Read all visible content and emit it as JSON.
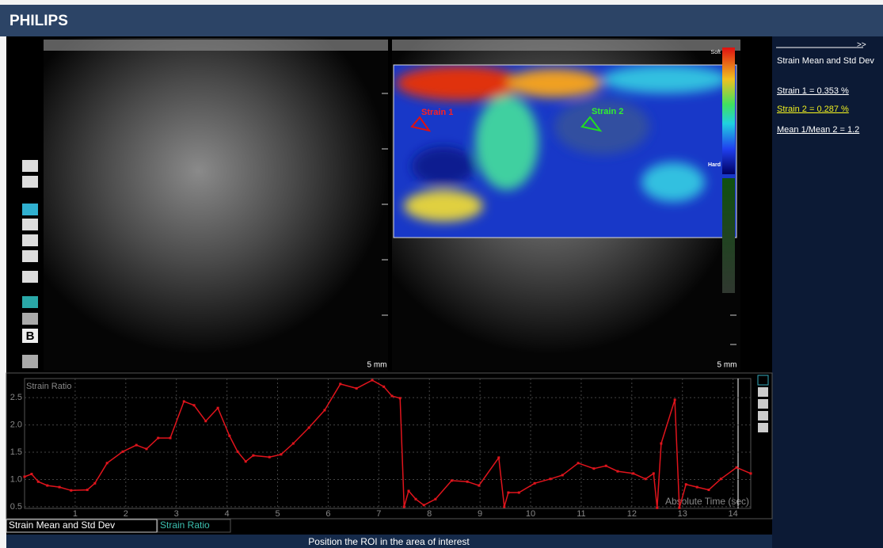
{
  "header": {
    "title": "PHILIPS"
  },
  "image": {
    "roi_1": "Strain 1",
    "roi_2": "Strain 2",
    "scale_top": "Soft",
    "scale_bottom": "Hard",
    "depth_left": "5 mm",
    "depth_right": "5 mm",
    "mode_button": "B"
  },
  "side_panel": {
    "arrow": ">>",
    "title": "Strain Mean and Std Dev",
    "strain_1": "Strain 1 = 0.353 %",
    "strain_2": "Strain 2 = 0.287 %",
    "ratio": "Mean 1/Mean 2 = 1.2"
  },
  "chart_data": {
    "type": "line",
    "y_label": "Strain Ratio",
    "x_label": "Absolute Time (sec)",
    "color": "#e0141c",
    "grid": true,
    "x": [
      0,
      0.14,
      0.27,
      0.45,
      0.69,
      0.92,
      1.24,
      1.39,
      1.63,
      1.94,
      2.21,
      2.41,
      2.64,
      2.88,
      3.15,
      3.35,
      3.58,
      3.82,
      4.05,
      4.21,
      4.37,
      4.52,
      4.84,
      5.07,
      5.31,
      5.62,
      5.93,
      6.24,
      6.56,
      6.87,
      7.1,
      7.26,
      7.42,
      7.5,
      7.59,
      7.73,
      7.89,
      8.12,
      8.44,
      8.75,
      8.98,
      9.37,
      9.48,
      9.56,
      9.77,
      10.08,
      10.39,
      10.63,
      10.94,
      11.25,
      11.49,
      11.72,
      12.03,
      12.27,
      12.43,
      12.5,
      12.58,
      12.85,
      12.94,
      13.07,
      13.29,
      13.52,
      13.76,
      14.07,
      14.35
    ],
    "values": [
      1.05,
      1.1,
      0.96,
      0.89,
      0.86,
      0.8,
      0.81,
      0.93,
      1.3,
      1.51,
      1.63,
      1.56,
      1.76,
      1.76,
      2.43,
      2.36,
      2.07,
      2.31,
      1.8,
      1.51,
      1.33,
      1.44,
      1.41,
      1.46,
      1.66,
      1.95,
      2.27,
      2.75,
      2.67,
      2.82,
      2.7,
      2.53,
      2.49,
      0.5,
      0.79,
      0.64,
      0.53,
      0.64,
      0.98,
      0.96,
      0.89,
      1.4,
      0.5,
      0.76,
      0.76,
      0.93,
      1.01,
      1.08,
      1.3,
      1.2,
      1.25,
      1.15,
      1.11,
      1.01,
      1.11,
      0.48,
      1.66,
      2.46,
      0.48,
      0.91,
      0.86,
      0.81,
      1.01,
      1.22,
      1.11
    ],
    "xlim": [
      0,
      14.35
    ],
    "xticks": [
      1,
      2,
      3,
      4,
      5,
      6,
      7,
      8,
      9,
      10,
      11,
      12,
      13,
      14
    ],
    "ylim": [
      0.47,
      2.85
    ],
    "yticks": [
      0.5,
      {
        "value": 1,
        "label": "1.0"
      },
      1.5,
      {
        "value": 2,
        "label": "2.0"
      },
      2.5
    ]
  },
  "tabs": [
    "Strain Mean and Std Dev",
    "Strain Ratio"
  ],
  "status": "Position the ROI in the area of interest"
}
